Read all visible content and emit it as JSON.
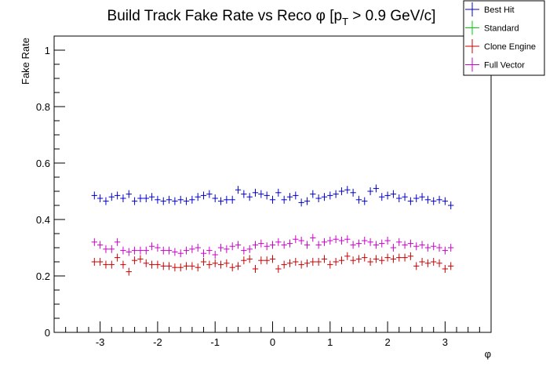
{
  "chart_data": {
    "type": "scatter",
    "title": "Build Track Fake Rate vs Reco φ [p",
    "title_sub": "T",
    "title_suffix": " > 0.9 GeV/c]",
    "xlabel": "φ",
    "ylabel": "Fake Rate",
    "xlim": [
      -3.8,
      3.8
    ],
    "ylim": [
      0,
      1.05
    ],
    "x_ticks": [
      -3,
      -2,
      -1,
      0,
      1,
      2,
      3
    ],
    "x_tick_labels": [
      "-3",
      "-2",
      "-1",
      "0",
      "1",
      "2",
      "3"
    ],
    "y_ticks": [
      0,
      0.2,
      0.4,
      0.6,
      0.8,
      1
    ],
    "y_tick_labels": [
      "0",
      "0.2",
      "0.4",
      "0.6",
      "0.8",
      "1"
    ],
    "grid": false,
    "legend_position": "top-right",
    "x": [
      -3.1,
      -3.0,
      -2.9,
      -2.8,
      -2.7,
      -2.6,
      -2.5,
      -2.4,
      -2.3,
      -2.2,
      -2.1,
      -2.0,
      -1.9,
      -1.8,
      -1.7,
      -1.6,
      -1.5,
      -1.4,
      -1.3,
      -1.2,
      -1.1,
      -1.0,
      -0.9,
      -0.8,
      -0.7,
      -0.6,
      -0.5,
      -0.4,
      -0.3,
      -0.2,
      -0.1,
      0.0,
      0.1,
      0.2,
      0.3,
      0.4,
      0.5,
      0.6,
      0.7,
      0.8,
      0.9,
      1.0,
      1.1,
      1.2,
      1.3,
      1.4,
      1.5,
      1.6,
      1.7,
      1.8,
      1.9,
      2.0,
      2.1,
      2.2,
      2.3,
      2.4,
      2.5,
      2.6,
      2.7,
      2.8,
      2.9,
      3.0,
      3.1
    ],
    "series": [
      {
        "name": "Best Hit",
        "color": "#0000cc",
        "values": [
          0.485,
          0.475,
          0.465,
          0.48,
          0.485,
          0.475,
          0.49,
          0.465,
          0.475,
          0.475,
          0.48,
          0.47,
          0.465,
          0.47,
          0.465,
          0.47,
          0.465,
          0.47,
          0.48,
          0.485,
          0.49,
          0.475,
          0.465,
          0.47,
          0.47,
          0.505,
          0.49,
          0.48,
          0.495,
          0.49,
          0.485,
          0.47,
          0.495,
          0.47,
          0.48,
          0.485,
          0.46,
          0.465,
          0.49,
          0.475,
          0.48,
          0.485,
          0.49,
          0.5,
          0.505,
          0.495,
          0.47,
          0.465,
          0.5,
          0.51,
          0.48,
          0.485,
          0.49,
          0.475,
          0.48,
          0.465,
          0.475,
          0.48,
          0.47,
          0.465,
          0.47,
          0.465,
          0.45
        ]
      },
      {
        "name": "Standard",
        "color": "#00cc00",
        "values": []
      },
      {
        "name": "Clone Engine",
        "color": "#cc0000",
        "values": [
          0.25,
          0.25,
          0.24,
          0.24,
          0.265,
          0.24,
          0.215,
          0.255,
          0.26,
          0.245,
          0.24,
          0.24,
          0.235,
          0.235,
          0.23,
          0.23,
          0.235,
          0.235,
          0.23,
          0.25,
          0.24,
          0.245,
          0.24,
          0.245,
          0.23,
          0.235,
          0.255,
          0.26,
          0.225,
          0.255,
          0.255,
          0.26,
          0.225,
          0.24,
          0.245,
          0.25,
          0.24,
          0.245,
          0.25,
          0.25,
          0.26,
          0.24,
          0.25,
          0.255,
          0.27,
          0.255,
          0.26,
          0.265,
          0.25,
          0.26,
          0.255,
          0.265,
          0.26,
          0.265,
          0.265,
          0.27,
          0.235,
          0.25,
          0.245,
          0.25,
          0.245,
          0.225,
          0.235
        ]
      },
      {
        "name": "Full Vector",
        "color": "#cc00cc",
        "values": [
          0.32,
          0.31,
          0.295,
          0.295,
          0.32,
          0.29,
          0.285,
          0.29,
          0.29,
          0.29,
          0.305,
          0.3,
          0.29,
          0.29,
          0.285,
          0.28,
          0.29,
          0.295,
          0.3,
          0.28,
          0.29,
          0.275,
          0.3,
          0.295,
          0.305,
          0.31,
          0.29,
          0.295,
          0.31,
          0.315,
          0.305,
          0.31,
          0.32,
          0.31,
          0.315,
          0.33,
          0.325,
          0.31,
          0.335,
          0.31,
          0.32,
          0.325,
          0.33,
          0.325,
          0.33,
          0.31,
          0.315,
          0.325,
          0.32,
          0.31,
          0.315,
          0.325,
          0.3,
          0.32,
          0.31,
          0.315,
          0.305,
          0.31,
          0.3,
          0.305,
          0.3,
          0.29,
          0.3
        ]
      }
    ]
  }
}
